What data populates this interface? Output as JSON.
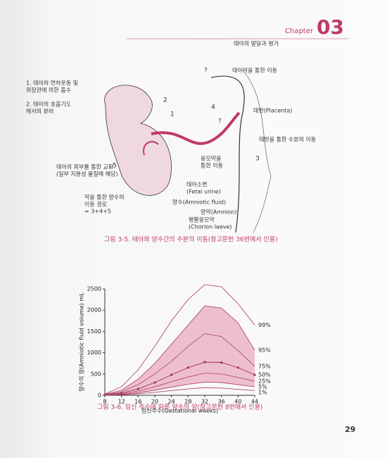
{
  "header": {
    "chapter_word": "Chapter",
    "chapter_number": "03",
    "section": "태아의 발달과 평가"
  },
  "figure1": {
    "labels": [
      {
        "lines": [
          "1. 태아의 연하운동 및",
          "위장관에 의한 흡수"
        ]
      },
      {
        "lines": [
          "2. 태아의 호흡기도",
          "에서의 분비"
        ]
      },
      {
        "lines": [
          "태아막을 통한 이동"
        ]
      },
      {
        "lines": [
          "태반(Placenta)"
        ]
      },
      {
        "lines": [
          "태반을 통한 수분의 이동"
        ]
      },
      {
        "lines": [
          "융모막을",
          "통한 이동"
        ]
      },
      {
        "lines": [
          "태아의 피부를 통한 교환",
          "(일부 지용성 물질에 해당)"
        ]
      },
      {
        "lines": [
          "막을 통한 양수의",
          "이동 경로",
          "= 3+4+5"
        ]
      },
      {
        "lines": [
          "태아소변",
          "(Fetal urine)"
        ]
      },
      {
        "lines": [
          "양수(Amniotic fluid)"
        ]
      },
      {
        "lines": [
          "양막(Amnion)"
        ]
      },
      {
        "lines": [
          "평활융모막",
          "(Chorion laeve)"
        ]
      }
    ],
    "numbers": [
      "1",
      "2",
      "3",
      "4",
      "5",
      "?",
      "?"
    ],
    "caption": "그림 3-5. 태아와 양수간의 수분의 이동(참고문헌 36번에서 인용)"
  },
  "chart_data": {
    "type": "line",
    "x_label": "임신주수(Gestational weeks)",
    "y_label": "양수의 양(Amniotic fluid volume) mL",
    "x": [
      8,
      12,
      16,
      20,
      24,
      28,
      32,
      36,
      40,
      44
    ],
    "xlim": [
      8,
      44
    ],
    "xticks": [
      8,
      12,
      16,
      20,
      24,
      28,
      32,
      36,
      40,
      44
    ],
    "ylim": [
      0,
      2500
    ],
    "yticks": [
      0,
      500,
      1000,
      1500,
      2000,
      2500
    ],
    "band_color": "#e8a7b9",
    "series": [
      {
        "name": "99%",
        "color": "#b24a6c",
        "values": [
          30,
          200,
          600,
          1150,
          1750,
          2250,
          2600,
          2550,
          2150,
          1650
        ]
      },
      {
        "name": "95%",
        "color": "#b24a6c",
        "values": [
          20,
          120,
          380,
          750,
          1200,
          1650,
          2100,
          2050,
          1700,
          1060
        ]
      },
      {
        "name": "75%",
        "color": "#b24a6c",
        "values": [
          15,
          80,
          250,
          500,
          800,
          1150,
          1450,
          1380,
          1050,
          680
        ]
      },
      {
        "name": "50%",
        "color": "#9c2f55",
        "values": [
          10,
          50,
          150,
          300,
          480,
          650,
          780,
          770,
          650,
          480
        ]
      },
      {
        "name": "25%",
        "color": "#b24a6c",
        "values": [
          8,
          35,
          100,
          200,
          320,
          430,
          520,
          500,
          420,
          330
        ]
      },
      {
        "name": "5%",
        "color": "#b24a6c",
        "values": [
          5,
          20,
          60,
          120,
          190,
          260,
          310,
          300,
          250,
          200
        ]
      },
      {
        "name": "1%",
        "color": "#b24a6c",
        "values": [
          3,
          12,
          35,
          70,
          110,
          150,
          180,
          170,
          140,
          110
        ]
      }
    ],
    "caption": "그림 3-6. 임신 주수에 따른 양수의 양(참고문헌 8번에서 인용)"
  },
  "page_number": "29"
}
